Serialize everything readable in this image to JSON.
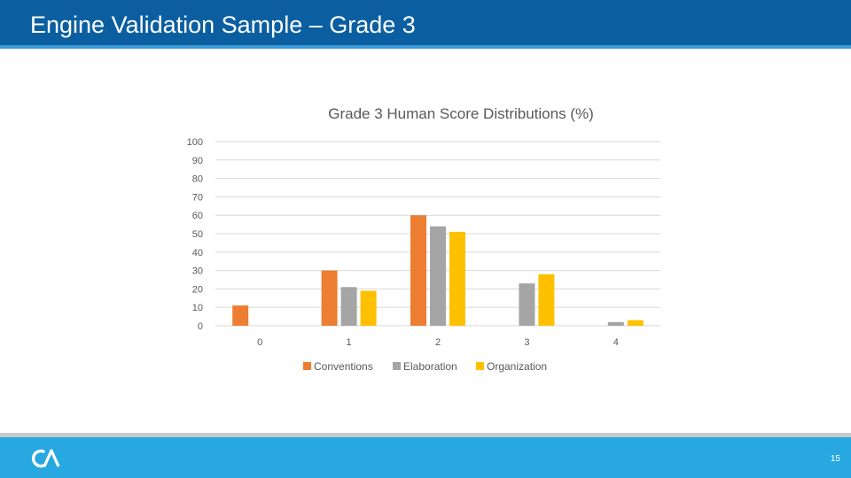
{
  "slide": {
    "title": "Engine Validation Sample – Grade 3",
    "page_number": "15",
    "logo_text": "CA"
  },
  "colors": {
    "header": "#0b5fa0",
    "footer": "#27a8e0",
    "conventions": "#ed7d31",
    "elaboration": "#a5a5a5",
    "organization": "#ffc000"
  },
  "chart_data": {
    "type": "bar",
    "title": "Grade 3 Human Score Distributions (%)",
    "xlabel": "",
    "ylabel": "",
    "categories": [
      "0",
      "1",
      "2",
      "3",
      "4"
    ],
    "series": [
      {
        "name": "Conventions",
        "values": [
          11,
          30,
          60,
          0,
          0
        ]
      },
      {
        "name": "Elaboration",
        "values": [
          0,
          21,
          54,
          23,
          2
        ]
      },
      {
        "name": "Organization",
        "values": [
          0,
          19,
          51,
          28,
          3
        ]
      }
    ],
    "ylim": [
      0,
      100
    ],
    "yticks": [
      0,
      10,
      20,
      30,
      40,
      50,
      60,
      70,
      80,
      90,
      100
    ],
    "grid": true,
    "legend_position": "bottom"
  }
}
